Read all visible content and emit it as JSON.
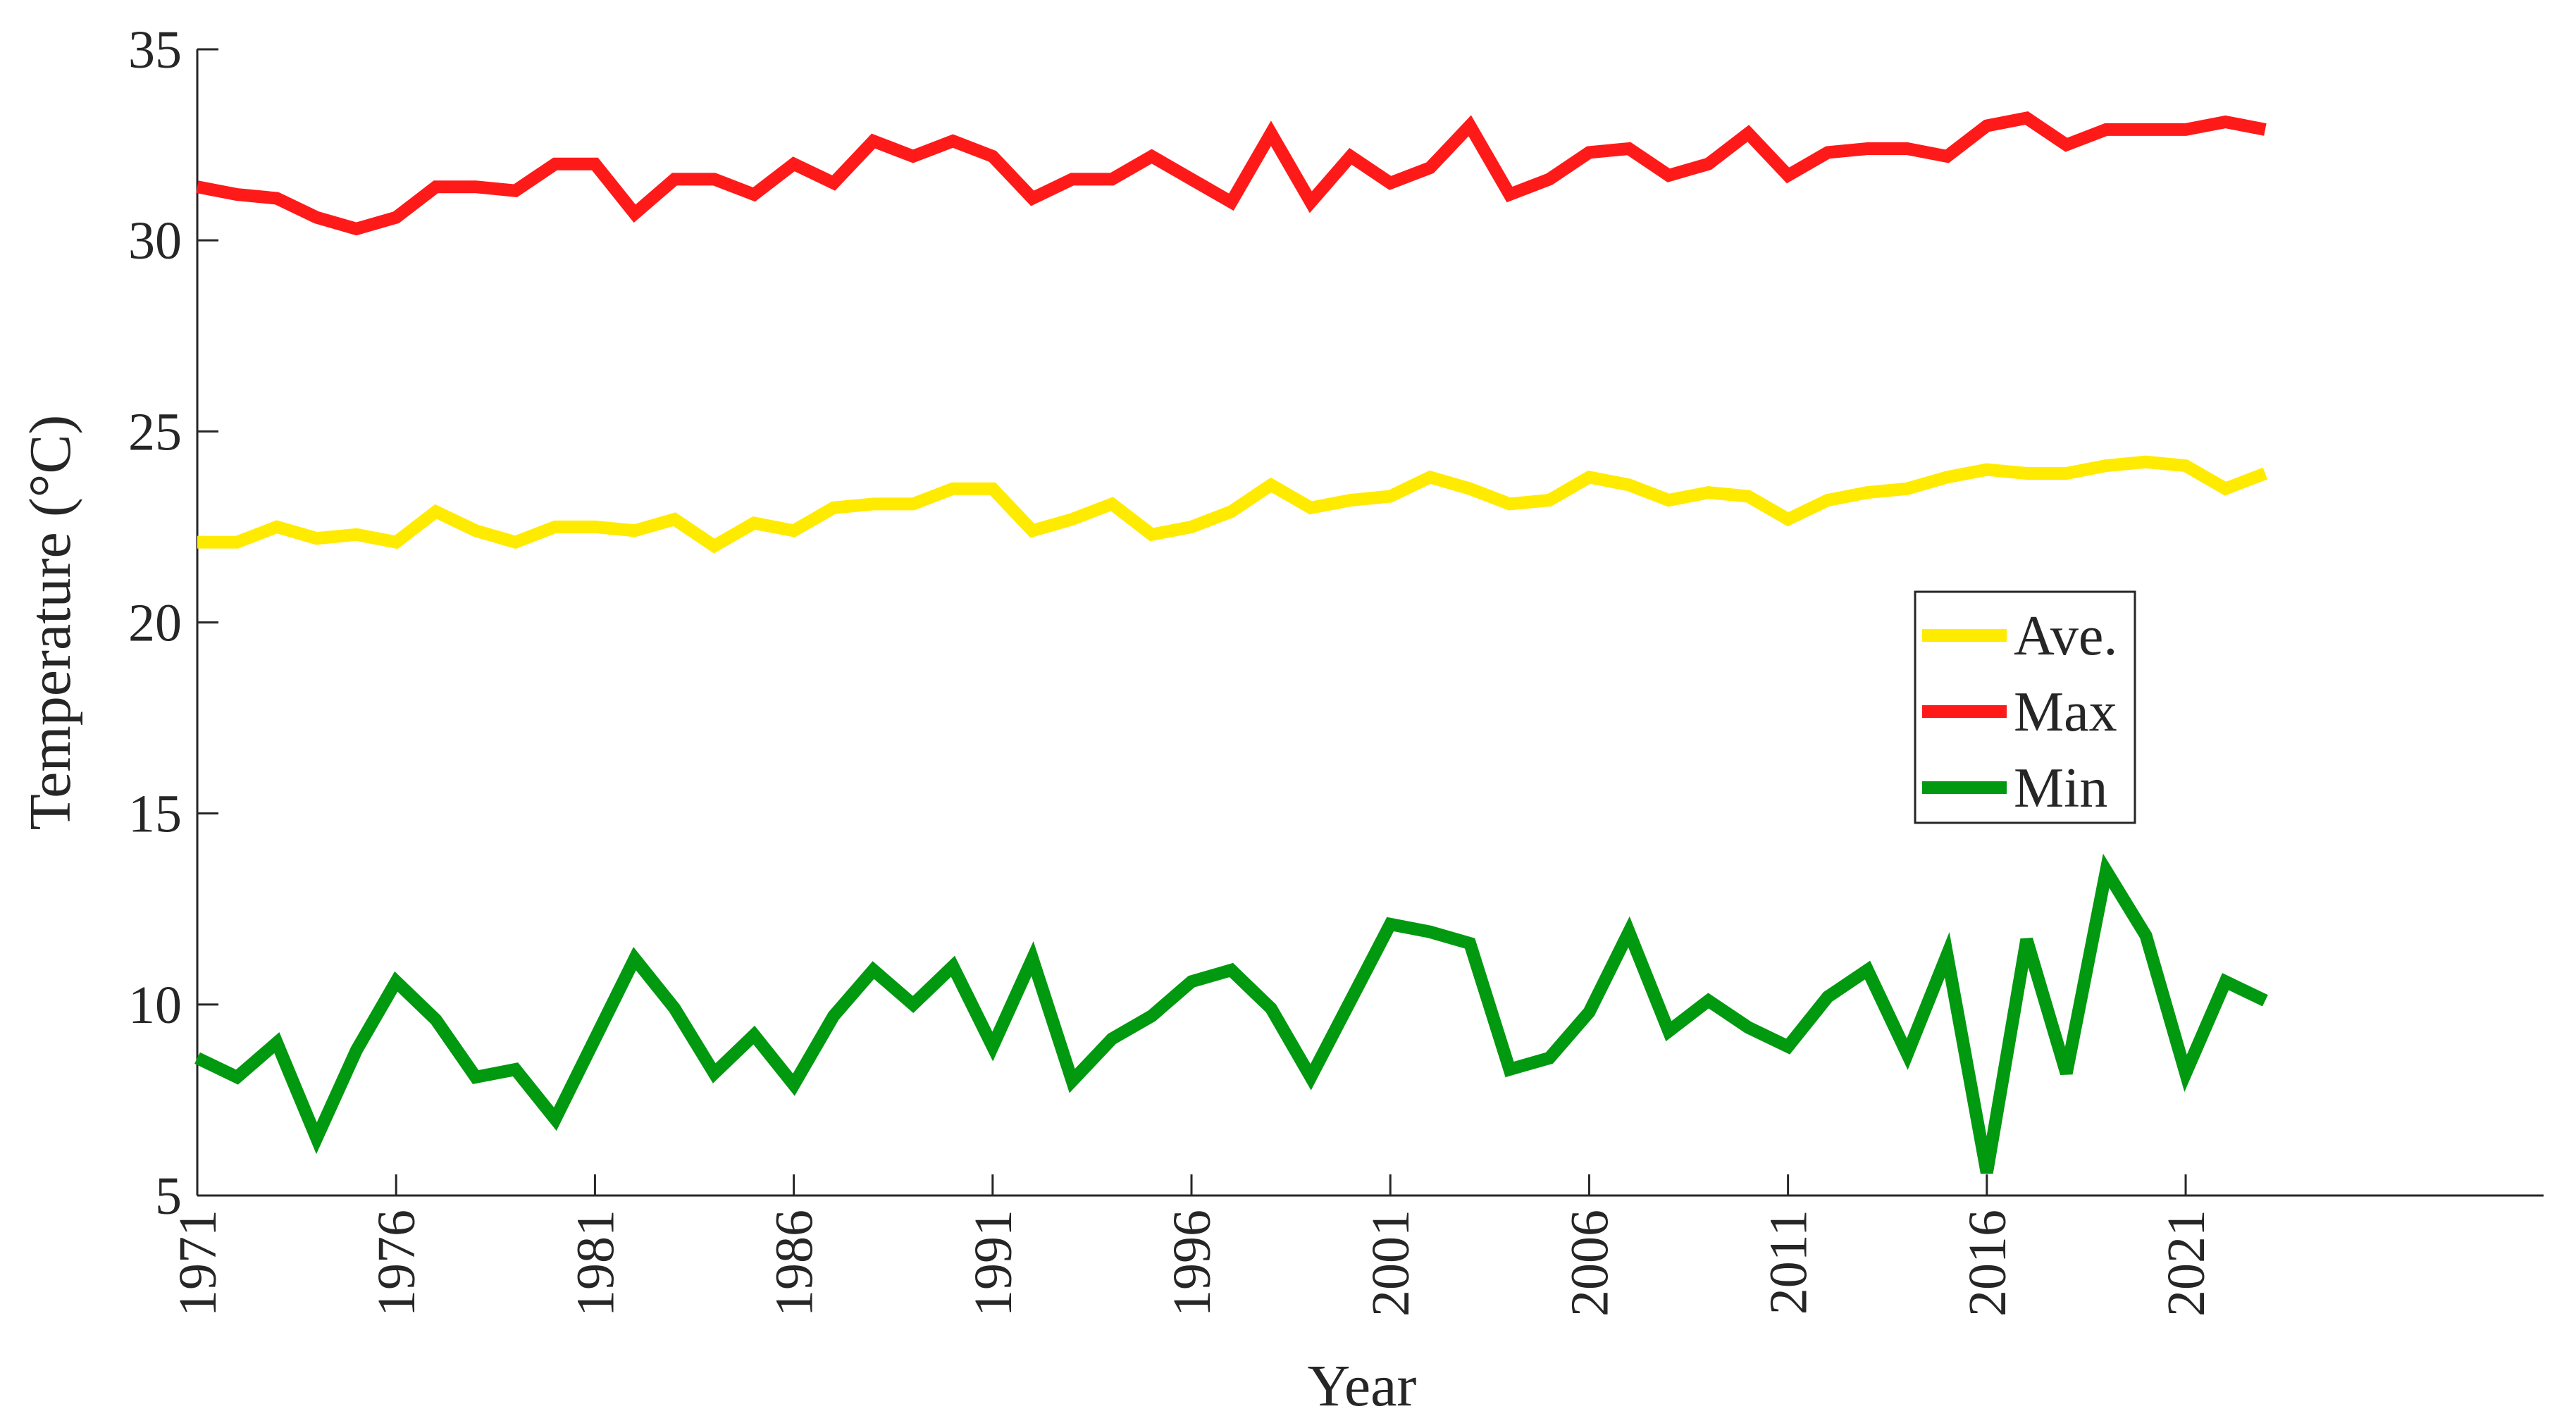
{
  "chart_data": {
    "type": "line",
    "xlabel": "Year",
    "ylabel": "Temperature (°C)",
    "ylim": [
      5,
      35
    ],
    "yticks": [
      5,
      10,
      15,
      20,
      25,
      30,
      35
    ],
    "xlim": [
      1971,
      2030
    ],
    "xticks": [
      "1971",
      "1976",
      "1981",
      "1986",
      "1991",
      "1996",
      "2001",
      "2006",
      "2011",
      "2016",
      "2021"
    ],
    "grid": false,
    "legend_position": "right-center",
    "x": [
      1971,
      1972,
      1973,
      1974,
      1975,
      1976,
      1977,
      1978,
      1979,
      1980,
      1981,
      1982,
      1983,
      1984,
      1985,
      1986,
      1987,
      1988,
      1989,
      1990,
      1991,
      1992,
      1993,
      1994,
      1995,
      1996,
      1997,
      1998,
      1999,
      2000,
      2001,
      2002,
      2003,
      2004,
      2005,
      2006,
      2007,
      2008,
      2009,
      2010,
      2011,
      2012,
      2013,
      2014,
      2015,
      2016,
      2017,
      2018,
      2019,
      2020,
      2021,
      2022,
      2023
    ],
    "series": [
      {
        "name": "Ave.",
        "color": "#ffeb00",
        "values": [
          22.1,
          22.1,
          22.5,
          22.2,
          22.3,
          22.1,
          22.9,
          22.4,
          22.1,
          22.5,
          22.5,
          22.4,
          22.7,
          22.0,
          22.6,
          22.4,
          23.0,
          23.1,
          23.1,
          23.5,
          23.5,
          22.4,
          22.7,
          23.1,
          22.3,
          22.5,
          22.9,
          23.6,
          23.0,
          23.2,
          23.3,
          23.8,
          23.5,
          23.1,
          23.2,
          23.8,
          23.6,
          23.2,
          23.4,
          23.3,
          22.7,
          23.2,
          23.4,
          23.5,
          23.8,
          24.0,
          23.9,
          23.9,
          24.1,
          24.2,
          24.1,
          23.5,
          23.9
        ]
      },
      {
        "name": "Max",
        "color": "#ff1a1a",
        "values": [
          31.4,
          31.2,
          31.1,
          30.6,
          30.3,
          30.6,
          31.4,
          31.4,
          31.3,
          32.0,
          32.0,
          30.7,
          31.6,
          31.6,
          31.2,
          32.0,
          31.5,
          32.6,
          32.2,
          32.6,
          32.2,
          31.1,
          31.6,
          31.6,
          32.2,
          31.6,
          31.0,
          32.8,
          31.0,
          32.2,
          31.5,
          31.9,
          33.0,
          31.2,
          31.6,
          32.3,
          32.4,
          31.7,
          32.0,
          32.8,
          31.7,
          32.3,
          32.4,
          32.4,
          32.2,
          33.0,
          33.2,
          32.5,
          32.9,
          32.9,
          32.9,
          33.1,
          32.9
        ]
      },
      {
        "name": "Min",
        "color": "#00990f",
        "values": [
          8.6,
          8.1,
          9.0,
          6.5,
          8.8,
          10.6,
          9.6,
          8.1,
          8.3,
          7.0,
          9.1,
          11.2,
          9.9,
          8.2,
          9.2,
          7.9,
          9.7,
          10.9,
          10.0,
          11.0,
          8.9,
          11.2,
          8.0,
          9.1,
          9.7,
          10.6,
          10.9,
          9.9,
          8.1,
          10.1,
          12.1,
          11.9,
          11.6,
          8.3,
          8.6,
          9.8,
          11.9,
          9.3,
          10.1,
          9.4,
          8.9,
          10.2,
          10.9,
          8.7,
          11.3,
          5.6,
          11.7,
          8.2,
          13.5,
          11.8,
          8.2,
          10.6,
          10.1
        ]
      }
    ]
  }
}
